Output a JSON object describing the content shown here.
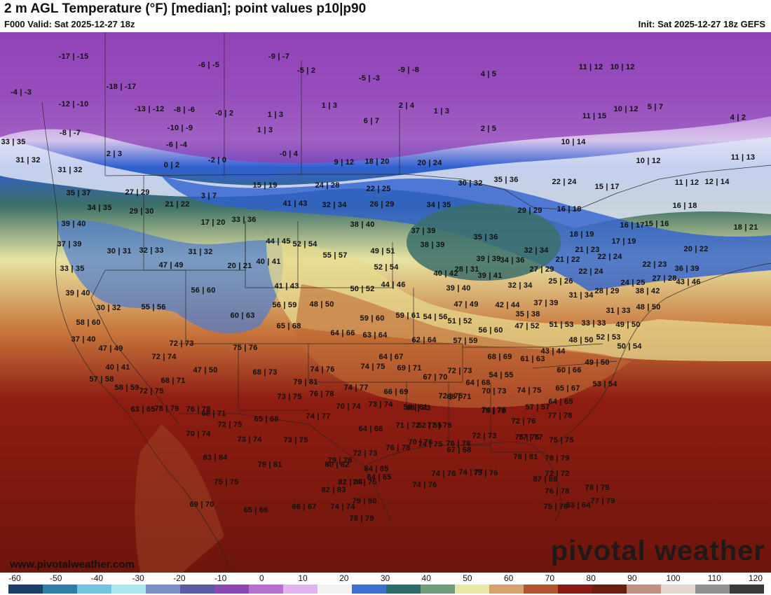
{
  "header": {
    "title": "2 m AGL Temperature (°F) [median]; point values p10|p90",
    "valid": "F000 Valid: Sat 2025-12-27 18z",
    "init": "Init: Sat 2025-12-27 18z GEFS"
  },
  "footer": {
    "website": "www.pivotalweather.com",
    "brand": "pivotal weather"
  },
  "colorbar": {
    "ticks": [
      "-60",
      "-50",
      "-40",
      "-30",
      "-20",
      "-10",
      "0",
      "10",
      "20",
      "30",
      "40",
      "50",
      "60",
      "70",
      "80",
      "90",
      "100",
      "110",
      "120"
    ],
    "colors": [
      "#1b3e6b",
      "#2e7fa8",
      "#6ec6e0",
      "#a9e8ef",
      "#7d8fc8",
      "#5a5aa8",
      "#8a47b6",
      "#b66fcf",
      "#e2b4ee",
      "#f2f2f2",
      "#3c6fd2",
      "#2d6a6a",
      "#6e9d78",
      "#e7e7a8",
      "#d7a36a",
      "#b4542e",
      "#8c1a14",
      "#6e1c0e",
      "#c09080",
      "#e6d6d0",
      "#909090",
      "#3a3a3a"
    ]
  },
  "map": {
    "point_values": [
      "-17|-15",
      "-6|-5",
      "-9|-7",
      "-5|2",
      "-5|-3",
      "-9|-8",
      "4|5",
      "-4|-3",
      "-18|-17",
      "-12|-10",
      "-13|-12",
      "-8|-6",
      "-0|2",
      "1|3",
      "1|3",
      "2|4",
      "1|3",
      "11|12",
      "10|12",
      "-8|-7",
      "-10|-9",
      "1|3",
      "6|7",
      "2|5",
      "11|15",
      "10|12",
      "5|7",
      "4|2",
      "33|35",
      "-6|-4",
      "2|3",
      "0|2",
      "-2|0",
      "-0|4",
      "9|12",
      "18|20",
      "20|24",
      "10|14",
      "10|12",
      "11|13",
      "31|32",
      "31|32",
      "22|24",
      "15|17",
      "11|12",
      "12|14",
      "35|37",
      "27|29",
      "3|7",
      "15|19",
      "24|28",
      "22|25",
      "30|32",
      "35|36",
      "34|35",
      "21|22",
      "41|43",
      "32|34",
      "26|29",
      "34|35",
      "16|18",
      "29|30",
      "16|18",
      "39|40",
      "17|20",
      "33|36",
      "38|40",
      "37|39",
      "29|29",
      "16|17",
      "15|16",
      "18|21",
      "44|45",
      "52|54",
      "35|36",
      "18|19",
      "37|39",
      "30|31",
      "32|33",
      "31|32",
      "55|57",
      "49|51",
      "38|39",
      "32|34",
      "21|23",
      "17|19",
      "20|22",
      "20|21",
      "40|41",
      "52|54",
      "39|39",
      "34|36",
      "21|22",
      "22|24",
      "22|23",
      "36|39",
      "33|35",
      "47|49",
      "41|43",
      "40|42",
      "28|31",
      "27|29",
      "22|24",
      "43|46",
      "39|40",
      "56|60",
      "50|52",
      "44|46",
      "39|40",
      "39|41",
      "32|34",
      "25|26",
      "24|25",
      "27|28",
      "30|32",
      "55|56",
      "56|59",
      "48|50",
      "47|49",
      "42|44",
      "37|39",
      "31|34",
      "28|29",
      "38|42",
      "60|63",
      "59|60",
      "59|61",
      "54|56",
      "51|52",
      "35|38",
      "31|33",
      "48|50",
      "58|60",
      "65|68",
      "64|66",
      "63|64",
      "56|60",
      "47|52",
      "51|53",
      "33|33",
      "49|50",
      "37|40",
      "72|73",
      "62|64",
      "57|59",
      "48|50",
      "52|53",
      "47|49",
      "75|76",
      "64|67",
      "68|69",
      "61|63",
      "43|44",
      "50|54",
      "72|74",
      "74|76",
      "74|75",
      "69|71",
      "72|73",
      "60|66",
      "49|50",
      "40|41",
      "47|50",
      "68|73",
      "67|70",
      "64|68",
      "54|55",
      "57|58",
      "68|71",
      "79|81",
      "74|77",
      "66|69",
      "68|71",
      "70|73",
      "74|75",
      "65|67",
      "53|54",
      "58|59",
      "72|75",
      "73|75",
      "76|78",
      "70|74",
      "68|73",
      "72|75",
      "74|76",
      "57|57",
      "64|65",
      "63|65",
      "78|79",
      "76|78",
      "74|77",
      "73|74",
      "58|61",
      "52|55",
      "67|68",
      "75|78",
      "72|76",
      "77|78",
      "68|71",
      "72|75",
      "65|68",
      "64|66",
      "71|72",
      "77|78",
      "77|77",
      "70|74",
      "73|74",
      "73|75",
      "76|78",
      "70|76",
      "76|78",
      "72|73",
      "75|76",
      "75|75",
      "72|73",
      "74|75",
      "74|77",
      "78|81",
      "83|84",
      "79|81",
      "80|82",
      "74|76",
      "75|76",
      "78|79",
      "72|72",
      "79|76",
      "84|85",
      "75|75",
      "64|65",
      "82|84",
      "74|76",
      "76|78",
      "87|88",
      "82|83",
      "74|75",
      "78|79",
      "69|70",
      "65|66",
      "66|67",
      "74|74",
      "79|80",
      "75|76",
      "78|79",
      "63|64",
      "77|79"
    ]
  }
}
